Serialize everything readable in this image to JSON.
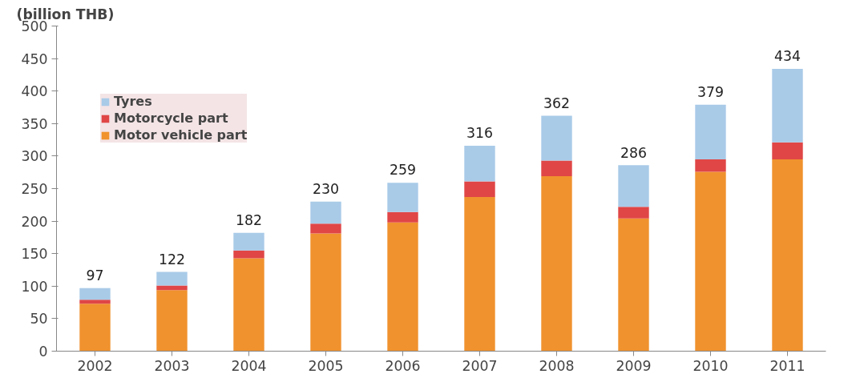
{
  "chart_data": {
    "type": "bar",
    "stacked": true,
    "ylabel": "(billion THB)",
    "categories": [
      "2002",
      "2003",
      "2004",
      "2005",
      "2006",
      "2007",
      "2008",
      "2009",
      "2010",
      "2011"
    ],
    "series": [
      {
        "name": "Motor vehicle part",
        "color": "#f0922e",
        "values": [
          73,
          94,
          143,
          181,
          198,
          237,
          269,
          204,
          276,
          295
        ]
      },
      {
        "name": "Motorcycle part",
        "color": "#e04646",
        "values": [
          6,
          7,
          12,
          15,
          16,
          24,
          24,
          18,
          19,
          26
        ]
      },
      {
        "name": "Tyres",
        "color": "#a9cbe8",
        "values": [
          18,
          21,
          27,
          34,
          45,
          55,
          69,
          64,
          84,
          113
        ]
      }
    ],
    "totals": [
      "97",
      "122",
      "182",
      "230",
      "259",
      "316",
      "362",
      "286",
      "379",
      "434"
    ],
    "ylim": [
      0,
      500
    ],
    "yticks": [
      0,
      50,
      100,
      150,
      200,
      250,
      300,
      350,
      400,
      450,
      500
    ],
    "grid": false,
    "legend": "top left"
  }
}
